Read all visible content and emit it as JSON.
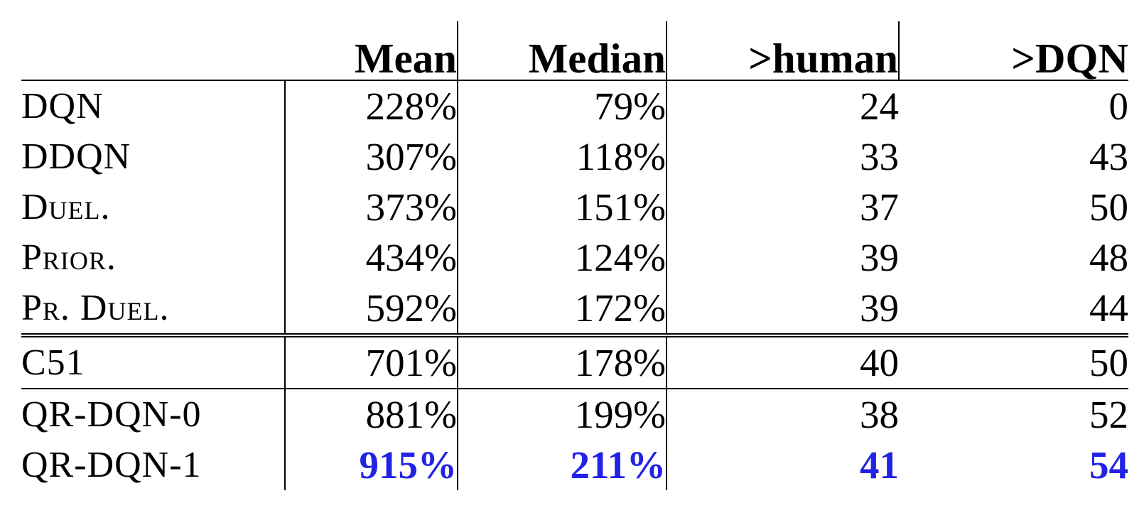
{
  "table": {
    "headers": [
      "",
      "Mean",
      "Median",
      ">human",
      ">DQN"
    ],
    "highlight_color": "#2323e6",
    "groups": [
      {
        "rows": [
          {
            "name": "DQN",
            "mean": "228%",
            "median": "79%",
            "human": "24",
            "dqn": "0"
          },
          {
            "name": "DDQN",
            "mean": "307%",
            "median": "118%",
            "human": "33",
            "dqn": "43"
          },
          {
            "name": "Duel.",
            "mean": "373%",
            "median": "151%",
            "human": "37",
            "dqn": "50"
          },
          {
            "name": "Prior.",
            "mean": "434%",
            "median": "124%",
            "human": "39",
            "dqn": "48"
          },
          {
            "name": "Pr. Duel.",
            "mean": "592%",
            "median": "172%",
            "human": "39",
            "dqn": "44"
          }
        ]
      },
      {
        "rows": [
          {
            "name": "C51",
            "mean": "701%",
            "median": "178%",
            "human": "40",
            "dqn": "50"
          }
        ]
      },
      {
        "rows": [
          {
            "name": "QR-DQN-0",
            "mean": "881%",
            "median": "199%",
            "human": "38",
            "dqn": "52"
          },
          {
            "name": "QR-DQN-1",
            "mean": "915%",
            "median": "211%",
            "human": "41",
            "dqn": "54",
            "best": true
          }
        ]
      }
    ]
  }
}
